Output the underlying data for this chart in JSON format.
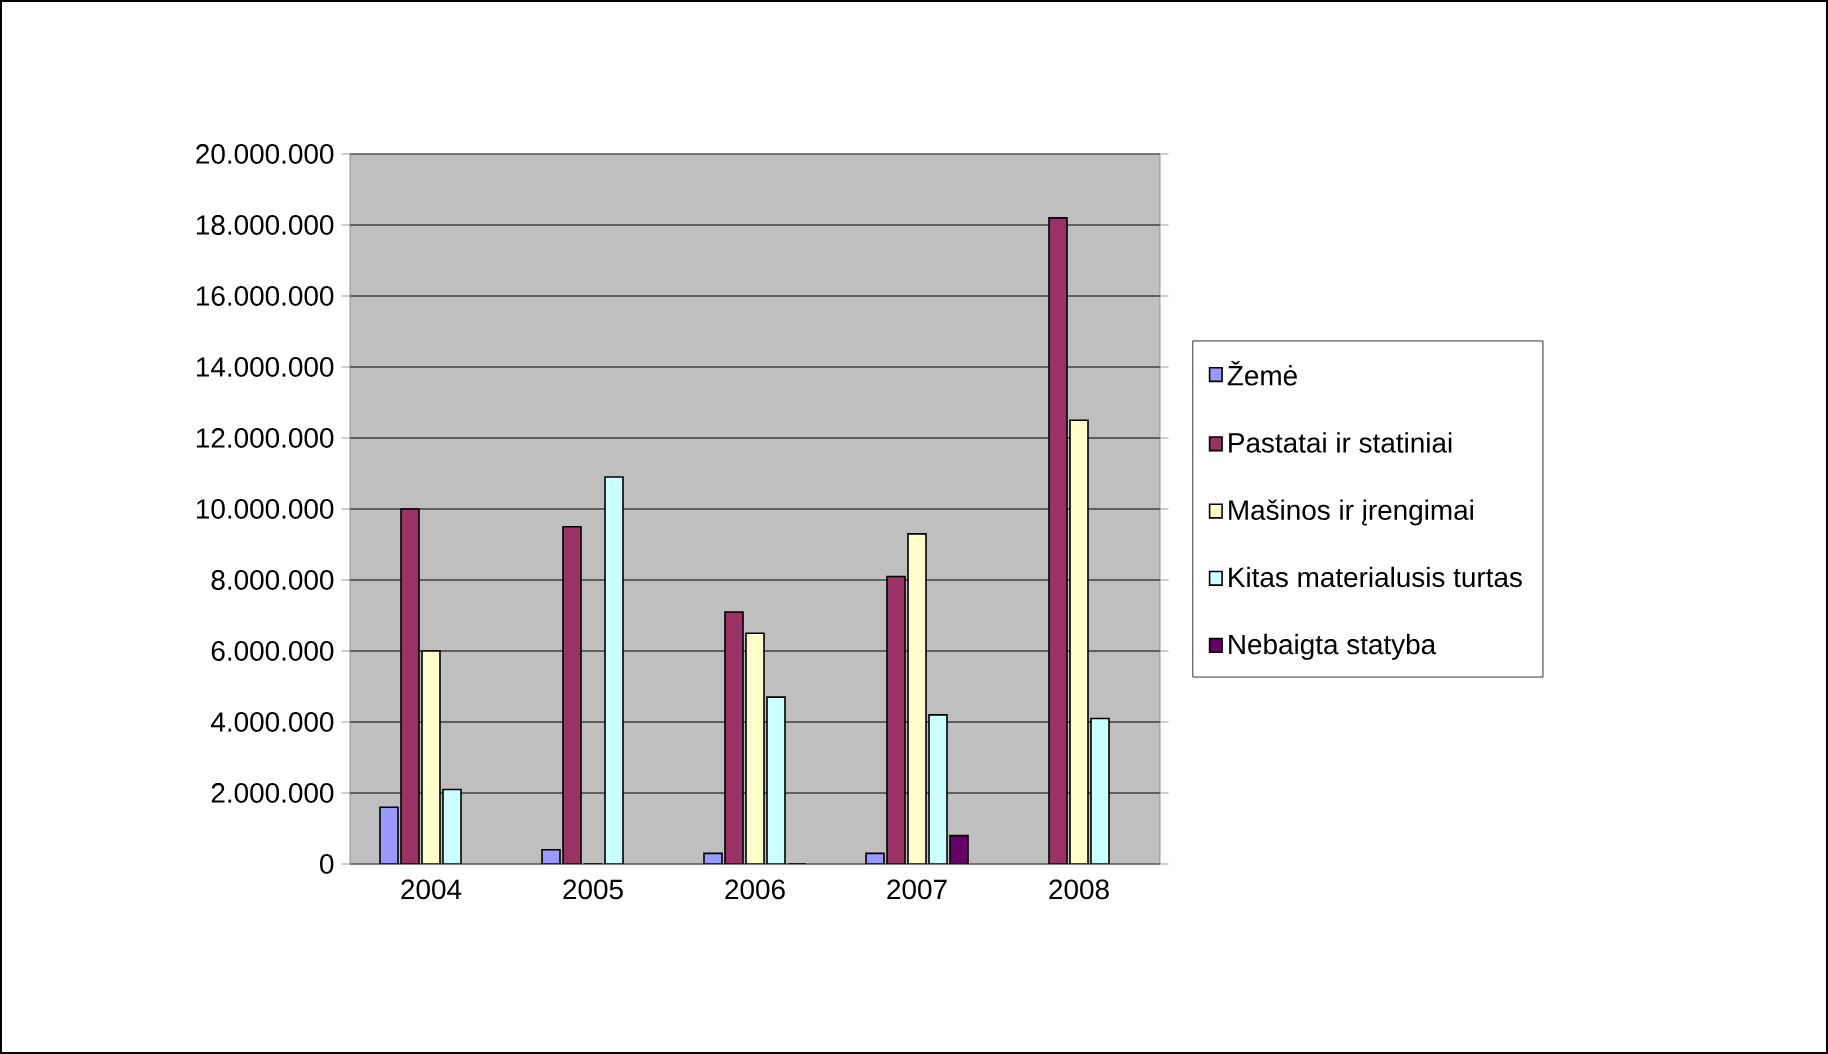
{
  "chart_data": {
    "type": "bar",
    "categories": [
      "2004",
      "2005",
      "2006",
      "2007",
      "2008"
    ],
    "series": [
      {
        "name": "Žemė",
        "color": "#9999ff",
        "values": [
          1600000,
          400000,
          300000,
          300000,
          null
        ]
      },
      {
        "name": "Pastatai ir statiniai",
        "color": "#993366",
        "values": [
          10000000,
          9500000,
          7100000,
          8100000,
          18200000
        ]
      },
      {
        "name": "Mašinos ir įrengimai",
        "color": "#ffffcc",
        "values": [
          6000000,
          0,
          6500000,
          9300000,
          12500000
        ]
      },
      {
        "name": "Kitas materialusis turtas",
        "color": "#ccffff",
        "values": [
          2100000,
          10900000,
          4700000,
          4200000,
          4100000
        ]
      },
      {
        "name": "Nebaigta statyba",
        "color": "#660066",
        "values": [
          null,
          null,
          0,
          800000,
          null
        ]
      }
    ],
    "ylim": [
      0,
      20000000
    ],
    "yticks": [
      {
        "value": 0,
        "label": "0"
      },
      {
        "value": 2000000,
        "label": "2.000.000"
      },
      {
        "value": 4000000,
        "label": "4.000.000"
      },
      {
        "value": 6000000,
        "label": "6.000.000"
      },
      {
        "value": 8000000,
        "label": "8.000.000"
      },
      {
        "value": 10000000,
        "label": "10.000.000"
      },
      {
        "value": 12000000,
        "label": "12.000.000"
      },
      {
        "value": 14000000,
        "label": "14.000.000"
      },
      {
        "value": 16000000,
        "label": "16.000.000"
      },
      {
        "value": 18000000,
        "label": "18.000.000"
      },
      {
        "value": 20000000,
        "label": "20.000.000"
      }
    ],
    "grid": "y",
    "legend": "right"
  }
}
